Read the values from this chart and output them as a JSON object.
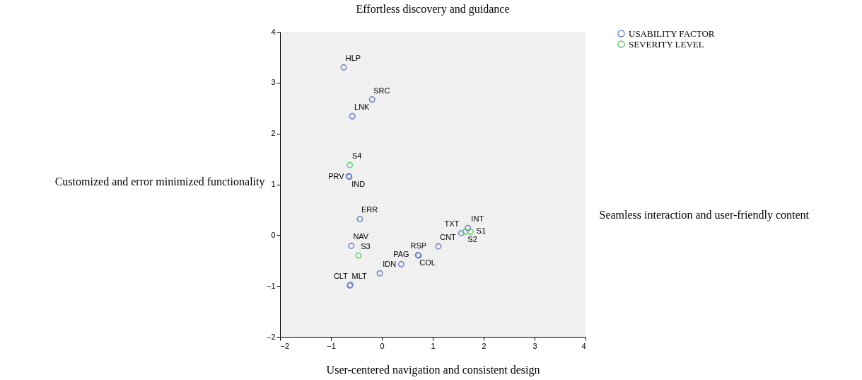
{
  "chart_data": {
    "type": "scatter",
    "title": "Effortless discovery and guidance",
    "xlabel": "User-centered navigation and consistent design",
    "ylabel": "Customized and error minimized functionality",
    "y2label": "Seamless interaction and user-friendly content",
    "series": [
      {
        "name": "USABILITY FACTOR",
        "color": "#6f7fc6",
        "x": [
          -0.75,
          -0.19,
          -0.58,
          -0.65,
          -0.64,
          -0.43,
          -0.6,
          -0.63,
          -0.62,
          -0.04,
          0.38,
          0.72,
          0.71,
          1.11,
          1.56,
          1.69
        ],
        "values": [
          3.3,
          2.67,
          2.34,
          1.16,
          1.15,
          0.32,
          -0.21,
          -0.99,
          -0.98,
          -0.75,
          -0.57,
          -0.4,
          -0.39,
          -0.22,
          0.04,
          0.14
        ]
      },
      {
        "name": "SEVERITY LEVEL",
        "color": "#5fcf6f",
        "x": [
          -0.63,
          -0.46,
          1.64,
          1.74
        ],
        "values": [
          1.38,
          -0.4,
          0.07,
          0.07
        ]
      }
    ],
    "annotations": [
      {
        "text": "HLP",
        "x": -0.75,
        "y": 3.3
      },
      {
        "text": "SRC",
        "x": -0.19,
        "y": 2.67
      },
      {
        "text": "LNK",
        "x": -0.58,
        "y": 2.34
      },
      {
        "text": "S4",
        "x": -0.63,
        "y": 1.38
      },
      {
        "text": "IND",
        "x": -0.65,
        "y": 1.16
      },
      {
        "text": "PRV",
        "x": -0.64,
        "y": 1.15
      },
      {
        "text": "ERR",
        "x": -0.43,
        "y": 0.32
      },
      {
        "text": "NAV",
        "x": -0.6,
        "y": -0.21
      },
      {
        "text": "S3",
        "x": -0.46,
        "y": -0.4
      },
      {
        "text": "MLT",
        "x": -0.63,
        "y": -0.99
      },
      {
        "text": "CLT",
        "x": -0.62,
        "y": -0.98
      },
      {
        "text": "IDN",
        "x": -0.04,
        "y": -0.75
      },
      {
        "text": "PAG",
        "x": 0.38,
        "y": -0.57
      },
      {
        "text": "RSP",
        "x": 0.72,
        "y": -0.4
      },
      {
        "text": "COL",
        "x": 0.71,
        "y": -0.39
      },
      {
        "text": "CNT",
        "x": 1.11,
        "y": -0.22
      },
      {
        "text": "TXT",
        "x": 1.56,
        "y": 0.04
      },
      {
        "text": "S2",
        "x": 1.64,
        "y": 0.07
      },
      {
        "text": "INT",
        "x": 1.69,
        "y": 0.14
      },
      {
        "text": "S1",
        "x": 1.74,
        "y": 0.07
      }
    ],
    "xlim": [
      -2,
      4
    ],
    "ylim": [
      -2,
      4
    ],
    "xticks": [
      -2,
      -1,
      0,
      1,
      2,
      3,
      4
    ],
    "yticks": [
      -2,
      -1,
      0,
      1,
      2,
      3,
      4
    ],
    "grid": false,
    "legend": "top right",
    "marker": "circle"
  }
}
